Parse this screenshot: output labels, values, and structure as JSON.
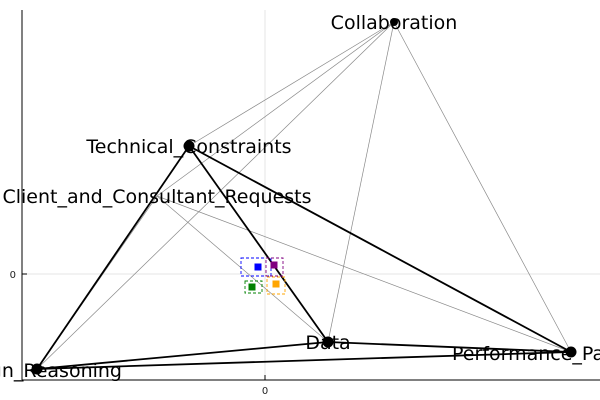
{
  "diagram": {
    "axes": {
      "x_tick_label": "0",
      "y_tick_label": "0",
      "grid": true
    },
    "nodes": [
      {
        "id": "collab",
        "label": "Collaboration"
      },
      {
        "id": "tech",
        "label": "Technical_Constraints"
      },
      {
        "id": "client",
        "label": "Client_and_Consultant_Requests"
      },
      {
        "id": "data",
        "label": "Data"
      },
      {
        "id": "perf",
        "label": "Performance_Pa"
      },
      {
        "id": "design",
        "label": "gn_Reasoning"
      }
    ],
    "edges": {
      "heavy": [
        [
          "tech",
          "design"
        ],
        [
          "tech",
          "data"
        ],
        [
          "tech",
          "perf"
        ],
        [
          "design",
          "data"
        ],
        [
          "design",
          "perf"
        ],
        [
          "data",
          "perf"
        ]
      ],
      "light": [
        [
          "collab",
          "tech"
        ],
        [
          "collab",
          "design"
        ],
        [
          "collab",
          "data"
        ],
        [
          "collab",
          "perf"
        ],
        [
          "collab",
          "client"
        ],
        [
          "client",
          "design"
        ],
        [
          "client",
          "perf"
        ],
        [
          "client",
          "data"
        ]
      ]
    },
    "markers": [
      {
        "name": "blue-marker",
        "color": "#0000ff"
      },
      {
        "name": "purple-marker",
        "color": "#800080"
      },
      {
        "name": "green-marker",
        "color": "#008000"
      },
      {
        "name": "orange-marker",
        "color": "#ffa500"
      }
    ]
  }
}
